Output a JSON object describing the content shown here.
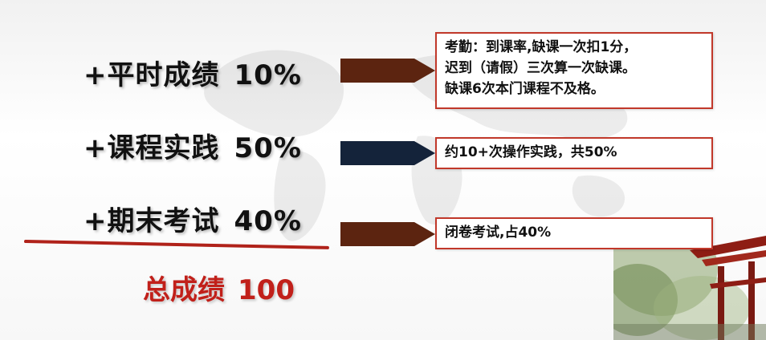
{
  "items": [
    {
      "label": "+平时成绩",
      "percent": "10%"
    },
    {
      "label": "+课程实践",
      "percent": "50%"
    },
    {
      "label": "+期末考试",
      "percent": "40%"
    }
  ],
  "total": {
    "label": "总成绩",
    "value": "100"
  },
  "notes": {
    "attendance": [
      "考勤：到课率,缺课一次扣1分，",
      "迟到（请假）三次算一次缺课。",
      "缺课6次本门课程不及格。"
    ],
    "practice": "约10+次操作实践，共50%",
    "exam": "闭卷考试,占40%"
  },
  "colors": {
    "arrow_brown": "#5c2410",
    "arrow_navy": "#14233a",
    "accent_red": "#c1201a",
    "note_border": "#c1382a"
  }
}
